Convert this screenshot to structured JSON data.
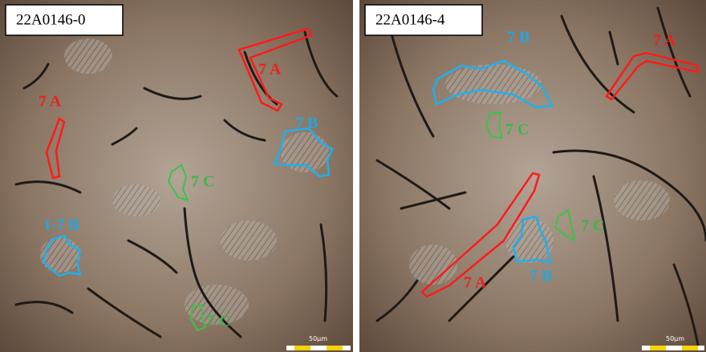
{
  "panels": [
    {
      "label": "22A0146-0",
      "scale_bar": "50μm",
      "annotations": [
        {
          "label": "7 A"
        },
        {
          "label": "7 A"
        },
        {
          "label": "7 B"
        },
        {
          "label": "7 C"
        },
        {
          "label": "1-7 B"
        },
        {
          "label": "7 C"
        }
      ]
    },
    {
      "label": "22A0146-4",
      "scale_bar": "50μm",
      "annotations": [
        {
          "label": "7 B"
        },
        {
          "label": "7 A"
        },
        {
          "label": "7 C"
        },
        {
          "label": "7 A"
        },
        {
          "label": "7 B"
        },
        {
          "label": "7 C"
        }
      ]
    }
  ]
}
